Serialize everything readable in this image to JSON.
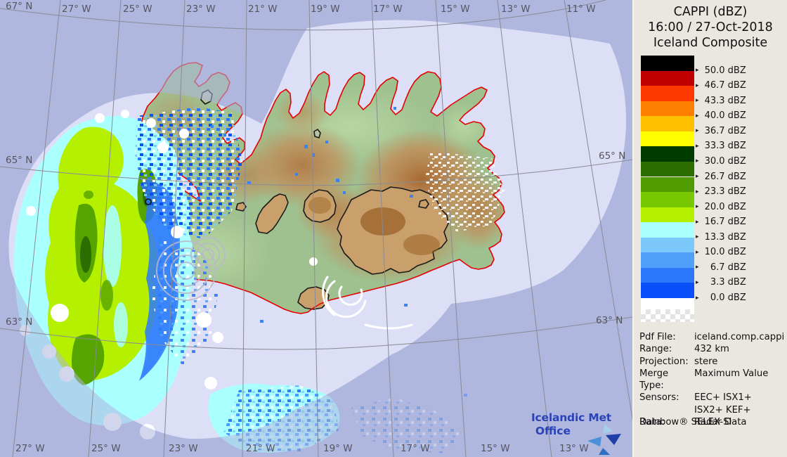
{
  "header": {
    "product": "CAPPI (dBZ)",
    "datetime": "16:00 / 27-Oct-2018",
    "composite": "Iceland Composite"
  },
  "legend": {
    "unit": "dBZ",
    "arrow_icon": "▸",
    "entries": [
      {
        "value": "50.0",
        "color": "#000000"
      },
      {
        "value": "46.7",
        "color": "#c00000"
      },
      {
        "value": "43.3",
        "color": "#ff3800"
      },
      {
        "value": "40.0",
        "color": "#ff8000"
      },
      {
        "value": "36.7",
        "color": "#ffc000"
      },
      {
        "value": "33.3",
        "color": "#ffff00"
      },
      {
        "value": "30.0",
        "color": "#003c00"
      },
      {
        "value": "26.7",
        "color": "#2d6e00"
      },
      {
        "value": "23.3",
        "color": "#509c00"
      },
      {
        "value": "20.0",
        "color": "#78c800"
      },
      {
        "value": "16.7",
        "color": "#b4f000"
      },
      {
        "value": "13.3",
        "color": "#aaffff"
      },
      {
        "value": "10.0",
        "color": "#7dc8fa"
      },
      {
        "value": "6.7",
        "color": "#50a0fa"
      },
      {
        "value": "3.3",
        "color": "#2d78fa"
      },
      {
        "value": "0.0",
        "color": "#0a50fa"
      }
    ],
    "transparent_color": "#ffffff"
  },
  "metadata": {
    "rows": [
      {
        "label": "Pdf File:",
        "value": "iceland.comp.cappi"
      },
      {
        "label": "Range:",
        "value": "432 km"
      },
      {
        "label": "Projection:",
        "value": "stere"
      },
      {
        "label": "Merge Type:",
        "value": "Maximum Value"
      },
      {
        "label": "Sensors:",
        "value": "EEC+ ISX1+"
      },
      {
        "label": "",
        "value": "ISX2+ KEF+"
      },
      {
        "label": "Data:",
        "value": "Radar Data"
      }
    ],
    "trademark": "Rainbow® SELEX-SI"
  },
  "map": {
    "lon_top": [
      "27° W",
      "25° W",
      "23° W",
      "21° W",
      "19° W",
      "17° W",
      "15° W",
      "13° W",
      "11° W"
    ],
    "lon_bottom": [
      "27° W",
      "25° W",
      "23° W",
      "21° W",
      "19° W",
      "17° W",
      "15° W",
      "13° W"
    ],
    "lat_left": [
      "67° N",
      "65° N",
      "63° N"
    ],
    "lat_right": [
      "65° N",
      "63° N"
    ],
    "colors": {
      "sea_out_of_range": "#b1b9e1",
      "sea_in_range": "#dcdff5",
      "land_green": "#9fc08f",
      "highland_brown": "#c28c58",
      "coastline_red": "#e60000",
      "glacier_outline": "#1a1a1a",
      "graticule_gray": "#8a8a96"
    }
  },
  "logo": {
    "line1": "Icelandic Met",
    "line2": "Office"
  }
}
